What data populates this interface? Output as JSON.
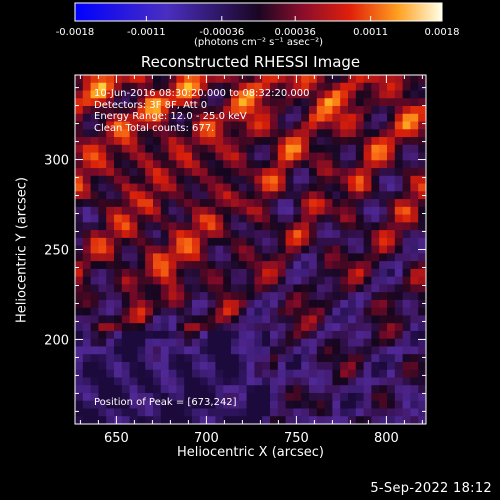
{
  "chart_data": {
    "type": "heatmap",
    "title": "Reconstructed RHESSI Image",
    "xlabel": "Heliocentric X (arcsec)",
    "ylabel": "Heliocentric Y (arcsec)",
    "xlim": [
      627,
      822
    ],
    "ylim": [
      153,
      347
    ],
    "x_ticks": [
      "650",
      "700",
      "750",
      "800"
    ],
    "x_tick_values": [
      650,
      700,
      750,
      800
    ],
    "y_ticks": [
      "200",
      "250",
      "300"
    ],
    "y_tick_values": [
      200,
      250,
      300
    ],
    "colorbar": {
      "ticks": [
        "-0.0018",
        "-0.0011",
        "-0.00036",
        "0.00036",
        "0.0011",
        "0.0018"
      ],
      "tick_values": [
        -0.0018,
        -0.0011,
        -0.00036,
        0.00036,
        0.0011,
        0.0018
      ],
      "range": [
        -0.0018,
        0.0018
      ],
      "colormap": "rhessi-blue-purple-red-yellow-white"
    },
    "annotations": [
      "10-Jun-2016 08:30:20.000 to 08:32:20.000",
      "Detectors: 3F 8F, Att 0",
      "Energy Range: 12.0 - 25.0 keV",
      "Clean    Total counts: 677."
    ],
    "peak_text": "Position of Peak = [673,242]",
    "peak_position": [
      673,
      242
    ],
    "colors": {
      "background": "#000000",
      "foreground": "#ffffff"
    }
  },
  "labels": {
    "colorbar_unit": "(photons cm⁻² s⁻¹ asec⁻²)",
    "footer_date": "5-Sep-2022 18:12"
  }
}
